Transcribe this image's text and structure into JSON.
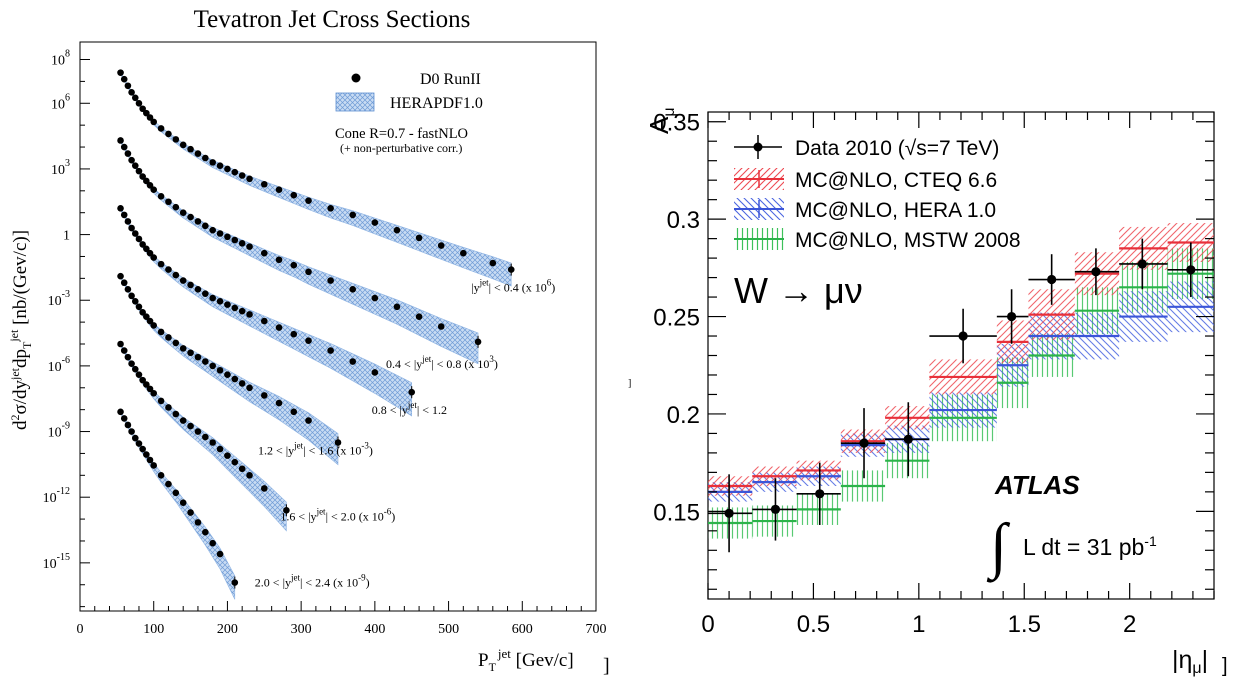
{
  "chart_data": [
    {
      "type": "scatter",
      "title": "Tevatron Jet Cross Sections",
      "xlabel_main": "P",
      "xlabel_sub": "T",
      "xlabel_sup": "jet",
      "xlabel_unit": " [Gev/c]",
      "ylabel_main": "d",
      "ylabel_text": "σ/dy",
      "ylabel_tail": "dp",
      "ylabel_unit": " [nb/(Gev/c)]",
      "ylabel_sup2": "2",
      "ylabel_supjet": "jet",
      "ylabel_subT": "T",
      "x_ticks": [
        "0",
        "100",
        "200",
        "300",
        "400",
        "500",
        "600",
        "700"
      ],
      "y_ticks": [
        {
          "mant": "10",
          "exp": "8"
        },
        {
          "mant": "10",
          "exp": "6"
        },
        {
          "mant": "10",
          "exp": "3"
        },
        {
          "mant": "1",
          "exp": ""
        },
        {
          "mant": "10",
          "exp": "-3"
        },
        {
          "mant": "10",
          "exp": "-6"
        },
        {
          "mant": "10",
          "exp": "-9"
        },
        {
          "mant": "10",
          "exp": "-12"
        },
        {
          "mant": "10",
          "exp": "-15"
        }
      ],
      "xlim": [
        0,
        700
      ],
      "ylog_lim": [
        -17.2,
        8.8
      ],
      "legend": {
        "data_label": "D0 RunII",
        "band_label": "HERAPDF1.0",
        "note1": "Cone R=0.7  - fastNLO",
        "note2": "(+ non-perturbative corr.)"
      },
      "band_color": "#8fb4e3",
      "series": [
        {
          "name": "|yʲᵉᵗ| < 0.4 (x 10⁶)",
          "label_pre": "|y",
          "label_sup": "jet",
          "label_mid": "| < 0.4 (x 10",
          "label_exp": "6",
          "label_end": ")",
          "x": [
            55,
            60,
            65,
            70,
            75,
            80,
            85,
            90,
            95,
            100,
            110,
            120,
            130,
            140,
            150,
            160,
            170,
            180,
            190,
            200,
            210,
            220,
            230,
            250,
            270,
            290,
            310,
            340,
            370,
            400,
            430,
            460,
            490,
            520,
            560,
            585
          ],
          "log10y": [
            7.4,
            7.1,
            6.8,
            6.5,
            6.25,
            6.0,
            5.75,
            5.55,
            5.35,
            5.15,
            4.85,
            4.6,
            4.35,
            4.1,
            3.9,
            3.7,
            3.5,
            3.3,
            3.15,
            3.0,
            2.85,
            2.7,
            2.55,
            2.3,
            2.05,
            1.8,
            1.55,
            1.2,
            0.9,
            0.55,
            0.2,
            -0.15,
            -0.5,
            -0.85,
            -1.3,
            -1.6
          ]
        },
        {
          "name": "0.4 < |yʲᵉᵗ| < 0.8 (x 10³)",
          "label_pre": "0.4 < |y",
          "label_sup": "jet",
          "label_mid": "| < 0.8 (x 10",
          "label_exp": "3",
          "label_end": ")",
          "x": [
            55,
            60,
            65,
            70,
            75,
            80,
            85,
            90,
            95,
            100,
            110,
            120,
            130,
            140,
            150,
            160,
            170,
            180,
            190,
            200,
            210,
            220,
            230,
            250,
            270,
            290,
            310,
            340,
            370,
            400,
            430,
            460,
            490,
            540
          ],
          "log10y": [
            4.3,
            4.0,
            3.7,
            3.4,
            3.15,
            2.9,
            2.65,
            2.45,
            2.25,
            2.05,
            1.75,
            1.5,
            1.25,
            1.0,
            0.8,
            0.6,
            0.4,
            0.2,
            0.05,
            -0.1,
            -0.25,
            -0.4,
            -0.55,
            -0.85,
            -1.15,
            -1.4,
            -1.7,
            -2.1,
            -2.5,
            -2.9,
            -3.3,
            -3.75,
            -4.2,
            -4.9
          ]
        },
        {
          "name": "0.8 < |yʲᵉᵗ| < 1.2",
          "label_pre": "0.8 < |y",
          "label_sup": "jet",
          "label_mid": "| < 1.2",
          "label_exp": "",
          "label_end": "",
          "x": [
            55,
            60,
            65,
            70,
            75,
            80,
            85,
            90,
            95,
            100,
            110,
            120,
            130,
            140,
            150,
            160,
            170,
            180,
            190,
            200,
            210,
            220,
            230,
            250,
            270,
            290,
            310,
            340,
            370,
            400,
            450
          ],
          "log10y": [
            1.2,
            0.9,
            0.6,
            0.3,
            0.05,
            -0.2,
            -0.45,
            -0.65,
            -0.85,
            -1.05,
            -1.35,
            -1.6,
            -1.85,
            -2.1,
            -2.3,
            -2.5,
            -2.7,
            -2.9,
            -3.05,
            -3.2,
            -3.35,
            -3.5,
            -3.65,
            -3.95,
            -4.25,
            -4.55,
            -4.85,
            -5.3,
            -5.8,
            -6.3,
            -7.2
          ]
        },
        {
          "name": "1.2 < |yʲᵉᵗ| < 1.6 (x 10⁻³)",
          "label_pre": "1.2 < |y",
          "label_sup": "jet",
          "label_mid": "| < 1.6 (x 10",
          "label_exp": "-3",
          "label_end": ")",
          "x": [
            55,
            60,
            65,
            70,
            75,
            80,
            85,
            90,
            95,
            100,
            110,
            120,
            130,
            140,
            150,
            160,
            170,
            180,
            190,
            200,
            210,
            220,
            230,
            250,
            270,
            290,
            310,
            350
          ],
          "log10y": [
            -1.9,
            -2.2,
            -2.5,
            -2.8,
            -3.05,
            -3.3,
            -3.55,
            -3.75,
            -3.95,
            -4.15,
            -4.45,
            -4.7,
            -4.95,
            -5.2,
            -5.4,
            -5.6,
            -5.8,
            -6.0,
            -6.2,
            -6.4,
            -6.6,
            -6.8,
            -7.0,
            -7.35,
            -7.7,
            -8.1,
            -8.5,
            -9.5
          ]
        },
        {
          "name": "1.6 < |yʲᵉᵗ| < 2.0 (x 10⁻⁶)",
          "label_pre": "1.6 < |y",
          "label_sup": "jet",
          "label_mid": "| < 2.0 (x 10",
          "label_exp": "-6",
          "label_end": ")",
          "x": [
            55,
            60,
            65,
            70,
            75,
            80,
            85,
            90,
            95,
            100,
            110,
            120,
            130,
            140,
            150,
            160,
            170,
            180,
            190,
            200,
            210,
            220,
            230,
            250,
            280
          ],
          "log10y": [
            -5.0,
            -5.3,
            -5.6,
            -5.9,
            -6.15,
            -6.4,
            -6.65,
            -6.85,
            -7.05,
            -7.25,
            -7.6,
            -7.9,
            -8.2,
            -8.5,
            -8.75,
            -9.0,
            -9.25,
            -9.5,
            -9.8,
            -10.1,
            -10.4,
            -10.7,
            -11.0,
            -11.6,
            -12.6
          ]
        },
        {
          "name": "2.0 < |yʲᵉᵗ| < 2.4 (x 10⁻⁹)",
          "label_pre": "2.0 < |y",
          "label_sup": "jet",
          "label_mid": "| < 2.4 (x 10",
          "label_exp": "-9",
          "label_end": ")",
          "x": [
            55,
            60,
            65,
            70,
            75,
            80,
            85,
            90,
            95,
            100,
            110,
            120,
            130,
            140,
            150,
            160,
            170,
            180,
            190,
            210
          ],
          "log10y": [
            -8.1,
            -8.4,
            -8.7,
            -9.0,
            -9.3,
            -9.55,
            -9.8,
            -10.05,
            -10.3,
            -10.55,
            -11.0,
            -11.4,
            -11.8,
            -12.25,
            -12.7,
            -13.15,
            -13.6,
            -14.1,
            -14.6,
            -15.9
          ]
        }
      ]
    },
    {
      "type": "scatter",
      "title": "",
      "xlabel": "|ημ|",
      "xlabel_main": "|η",
      "xlabel_sub": "μ",
      "xlabel_end": "|",
      "ylabel_main": "A",
      "ylabel_sub": "μ",
      "x_ticks": [
        "0",
        "0.5",
        "1",
        "1.5",
        "2"
      ],
      "y_ticks": [
        "0.15",
        "0.2",
        "0.25",
        "0.3",
        "0.35"
      ],
      "xlim": [
        0,
        2.4
      ],
      "ylim": [
        0.105,
        0.355
      ],
      "bin_edges": [
        0,
        0.21,
        0.42,
        0.63,
        0.84,
        1.05,
        1.37,
        1.52,
        1.74,
        1.95,
        2.18,
        2.4
      ],
      "process_label": "W → μν",
      "experiment_label": "ATLAS",
      "lumi_label_pre": "L dt = 31 pb",
      "lumi_label_exp": "-1",
      "series": [
        {
          "name": "Data 2010 (√s=7 TeV)",
          "color": "#000000",
          "x": [
            0.1,
            0.32,
            0.53,
            0.74,
            0.95,
            1.21,
            1.44,
            1.63,
            1.84,
            2.06,
            2.29
          ],
          "y": [
            0.149,
            0.151,
            0.159,
            0.185,
            0.187,
            0.24,
            0.25,
            0.269,
            0.273,
            0.277,
            0.274
          ],
          "yerr": [
            0.02,
            0.016,
            0.016,
            0.018,
            0.019,
            0.014,
            0.014,
            0.013,
            0.012,
            0.013,
            0.014
          ]
        },
        {
          "name": "MC@NLO, CTEQ 6.6",
          "color": "#e8303a",
          "y": [
            0.163,
            0.168,
            0.171,
            0.186,
            0.198,
            0.219,
            0.237,
            0.251,
            0.272,
            0.285,
            0.288
          ],
          "err": [
            0.005,
            0.005,
            0.005,
            0.006,
            0.006,
            0.009,
            0.011,
            0.013,
            0.011,
            0.011,
            0.01
          ]
        },
        {
          "name": "MC@NLO, HERA 1.0",
          "color": "#3b55d8",
          "y": [
            0.16,
            0.165,
            0.168,
            0.184,
            0.187,
            0.202,
            0.225,
            0.24,
            0.24,
            0.25,
            0.255
          ],
          "err": [
            0.005,
            0.005,
            0.005,
            0.006,
            0.007,
            0.009,
            0.011,
            0.012,
            0.012,
            0.013,
            0.013
          ]
        },
        {
          "name": "MC@NLO, MSTW 2008",
          "color": "#2bb34a",
          "y": [
            0.144,
            0.145,
            0.151,
            0.163,
            0.176,
            0.198,
            0.216,
            0.23,
            0.253,
            0.265,
            0.272
          ],
          "err": [
            0.008,
            0.008,
            0.008,
            0.008,
            0.009,
            0.012,
            0.013,
            0.011,
            0.012,
            0.013,
            0.013
          ]
        }
      ]
    }
  ]
}
